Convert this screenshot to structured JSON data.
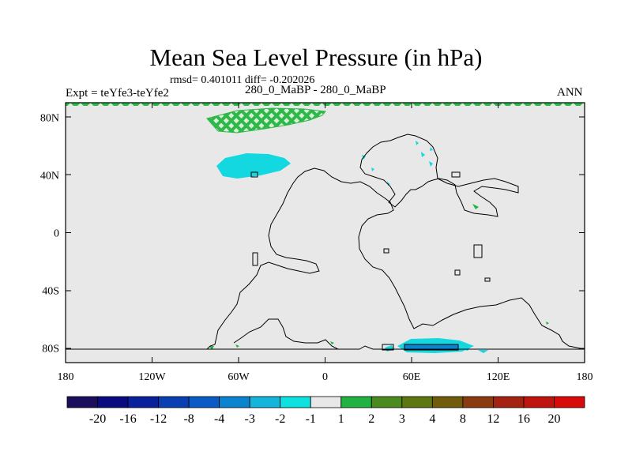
{
  "chart_data": {
    "type": "heatmap",
    "title": "Mean Sea Level Pressure (in hPa)",
    "subtitle_stats": "rmsd= 0.401011 diff= -0.202026",
    "left_label": "Expt = teYfe3-teYfe2",
    "center_label": "280_0_MaBP - 280_0_MaBP",
    "right_label": "ANN",
    "x_ticks": [
      "180",
      "120W",
      "60W",
      "0",
      "60E",
      "120E",
      "180"
    ],
    "y_ticks": [
      "80N",
      "40N",
      "0",
      "40S",
      "80S"
    ],
    "xlim": [
      -180,
      180
    ],
    "ylim": [
      -90,
      90
    ],
    "colorbar": {
      "labels": [
        "-20",
        "-16",
        "-12",
        "-8",
        "-4",
        "-3",
        "-2",
        "-1",
        "1",
        "2",
        "3",
        "4",
        "8",
        "12",
        "16",
        "20"
      ],
      "colors": [
        "#1a0f5c",
        "#0b0b80",
        "#0a219c",
        "#0a3fb4",
        "#0b5bc6",
        "#0b84cf",
        "#13b5dc",
        "#0fe0e0",
        "#e8e8e8",
        "#21b241",
        "#4b8a1f",
        "#5d7712",
        "#715c0b",
        "#8a3c10",
        "#a42212",
        "#c0140f",
        "#d80a0a"
      ]
    },
    "features": [
      {
        "name": "positive anomaly 2 to 3 hPa",
        "value_range": [
          2,
          3
        ],
        "lon_range": [
          -85,
          -20
        ],
        "lat_range": [
          65,
          87
        ]
      },
      {
        "name": "negative anomaly -2 to -1 hPa",
        "value_range": [
          -2,
          -1
        ],
        "lon_range": [
          -75,
          -22
        ],
        "lat_range": [
          38,
          54
        ]
      },
      {
        "name": "negative anomaly -3 to -2 hPa",
        "value_range": [
          -3,
          -2
        ],
        "lon_range": [
          55,
          95
        ],
        "lat_range": [
          -82,
          -76
        ]
      }
    ]
  }
}
